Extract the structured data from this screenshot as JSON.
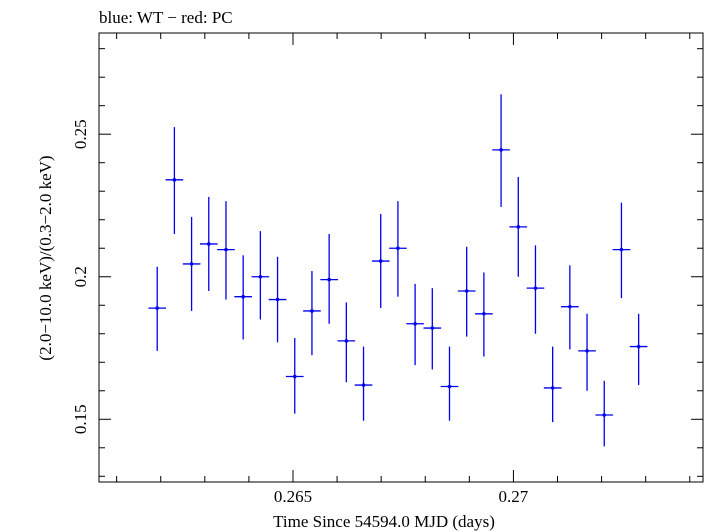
{
  "chart_data": {
    "type": "scatter",
    "title": "blue: WT − red: PC",
    "xlabel": "Time Since 54594.0 MJD (days)",
    "ylabel": "(2.0−10.0 keV)/(0.3−2.0 keV)",
    "xlim": [
      0.2606,
      0.2743
    ],
    "ylim": [
      0.128,
      0.2855
    ],
    "x_ticks": [
      {
        "value": 0.265,
        "label": "0.265"
      },
      {
        "value": 0.27,
        "label": "0.27"
      }
    ],
    "y_ticks": [
      {
        "value": 0.15,
        "label": "0.15"
      },
      {
        "value": 0.2,
        "label": "0.2"
      },
      {
        "value": 0.25,
        "label": "0.25"
      }
    ],
    "grid": false,
    "series": [
      {
        "color": "#0000ee",
        "points": [
          {
            "x": 0.26192,
            "xerr": 0.0002,
            "y": 0.189,
            "ylo": 0.174,
            "yhi": 0.2035
          },
          {
            "x": 0.26231,
            "xerr": 0.0002,
            "y": 0.234,
            "ylo": 0.215,
            "yhi": 0.2525
          },
          {
            "x": 0.2627,
            "xerr": 0.0002,
            "y": 0.2045,
            "ylo": 0.188,
            "yhi": 0.221
          },
          {
            "x": 0.26309,
            "xerr": 0.0002,
            "y": 0.2115,
            "ylo": 0.195,
            "yhi": 0.228
          },
          {
            "x": 0.26348,
            "xerr": 0.0002,
            "y": 0.2095,
            "ylo": 0.192,
            "yhi": 0.2265
          },
          {
            "x": 0.26387,
            "xerr": 0.0002,
            "y": 0.193,
            "ylo": 0.178,
            "yhi": 0.2075
          },
          {
            "x": 0.26426,
            "xerr": 0.0002,
            "y": 0.2,
            "ylo": 0.185,
            "yhi": 0.216
          },
          {
            "x": 0.26465,
            "xerr": 0.0002,
            "y": 0.192,
            "ylo": 0.177,
            "yhi": 0.207
          },
          {
            "x": 0.26504,
            "xerr": 0.0002,
            "y": 0.165,
            "ylo": 0.152,
            "yhi": 0.1785
          },
          {
            "x": 0.26543,
            "xerr": 0.0002,
            "y": 0.188,
            "ylo": 0.1725,
            "yhi": 0.202
          },
          {
            "x": 0.26582,
            "xerr": 0.0002,
            "y": 0.199,
            "ylo": 0.1835,
            "yhi": 0.215
          },
          {
            "x": 0.26621,
            "xerr": 0.0002,
            "y": 0.1775,
            "ylo": 0.163,
            "yhi": 0.191
          },
          {
            "x": 0.2666,
            "xerr": 0.0002,
            "y": 0.162,
            "ylo": 0.1495,
            "yhi": 0.1755
          },
          {
            "x": 0.26699,
            "xerr": 0.0002,
            "y": 0.2055,
            "ylo": 0.189,
            "yhi": 0.222
          },
          {
            "x": 0.26738,
            "xerr": 0.0002,
            "y": 0.21,
            "ylo": 0.193,
            "yhi": 0.2265
          },
          {
            "x": 0.26777,
            "xerr": 0.0002,
            "y": 0.1835,
            "ylo": 0.169,
            "yhi": 0.1975
          },
          {
            "x": 0.26816,
            "xerr": 0.0002,
            "y": 0.182,
            "ylo": 0.1675,
            "yhi": 0.196
          },
          {
            "x": 0.26855,
            "xerr": 0.0002,
            "y": 0.1615,
            "ylo": 0.1495,
            "yhi": 0.1755
          },
          {
            "x": 0.26894,
            "xerr": 0.0002,
            "y": 0.195,
            "ylo": 0.179,
            "yhi": 0.2105
          },
          {
            "x": 0.26933,
            "xerr": 0.0002,
            "y": 0.187,
            "ylo": 0.172,
            "yhi": 0.2015
          },
          {
            "x": 0.26972,
            "xerr": 0.0002,
            "y": 0.2445,
            "ylo": 0.2245,
            "yhi": 0.264
          },
          {
            "x": 0.27011,
            "xerr": 0.0002,
            "y": 0.2175,
            "ylo": 0.2,
            "yhi": 0.235
          },
          {
            "x": 0.2705,
            "xerr": 0.0002,
            "y": 0.196,
            "ylo": 0.18,
            "yhi": 0.211
          },
          {
            "x": 0.27089,
            "xerr": 0.0002,
            "y": 0.161,
            "ylo": 0.149,
            "yhi": 0.1755
          },
          {
            "x": 0.27128,
            "xerr": 0.0002,
            "y": 0.1895,
            "ylo": 0.1745,
            "yhi": 0.204
          },
          {
            "x": 0.27167,
            "xerr": 0.0002,
            "y": 0.174,
            "ylo": 0.16,
            "yhi": 0.187
          },
          {
            "x": 0.27206,
            "xerr": 0.0002,
            "y": 0.1515,
            "ylo": 0.1405,
            "yhi": 0.1635
          },
          {
            "x": 0.27245,
            "xerr": 0.0002,
            "y": 0.2095,
            "ylo": 0.1925,
            "yhi": 0.226
          },
          {
            "x": 0.27284,
            "xerr": 0.0002,
            "y": 0.1755,
            "ylo": 0.162,
            "yhi": 0.187
          }
        ]
      }
    ]
  }
}
